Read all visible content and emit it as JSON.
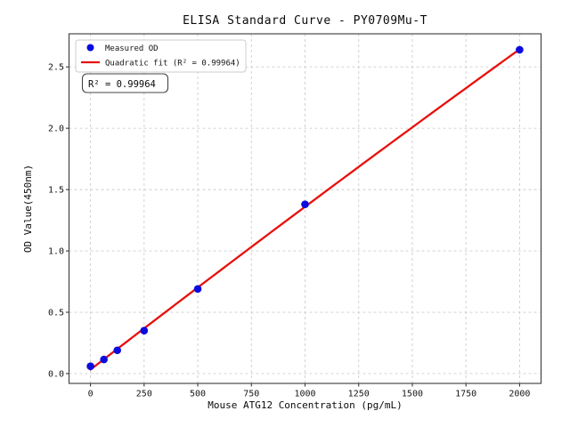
{
  "chart_data": {
    "type": "scatter",
    "title": "ELISA Standard Curve - PY0709Mu-T",
    "xlabel": "Mouse ATG12 Concentration (pg/mL)",
    "ylabel": "OD Value(450nm)",
    "x": [
      0,
      62.5,
      125,
      250,
      500,
      1000,
      2000
    ],
    "y": [
      0.06,
      0.115,
      0.19,
      0.35,
      0.69,
      1.38,
      2.64
    ],
    "series": [
      {
        "name": "Measured OD",
        "kind": "scatter",
        "marker": "circle",
        "color": "#0b0bdf"
      },
      {
        "name": "Quadratic fit (R² = 0.99964)",
        "kind": "quadratic-fit",
        "color": "#e8100c"
      }
    ],
    "r_squared": 0.99964,
    "annotation": "R² = 0.99964",
    "xticks": [
      0,
      250,
      500,
      750,
      1000,
      1250,
      1500,
      1750,
      2000
    ],
    "yticks": [
      0.0,
      0.5,
      1.0,
      1.5,
      2.0,
      2.5
    ],
    "xlim": [
      -100,
      2100
    ],
    "ylim": [
      -0.08,
      2.77
    ],
    "grid": true,
    "grid_style": "dashed",
    "legend_position": "upper-left",
    "colors": {
      "marker": "#0b0bdf",
      "fit_line": "#e8100c",
      "grid": "#cdcdcd",
      "text": "#141414"
    }
  }
}
